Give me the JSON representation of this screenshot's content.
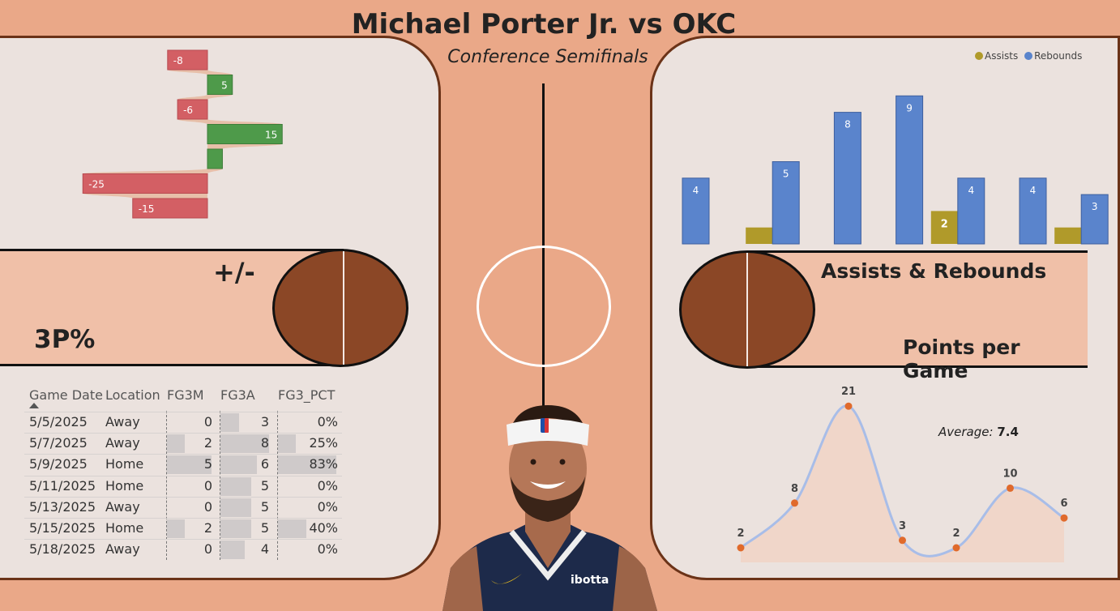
{
  "header": {
    "title": "Michael Porter Jr. vs OKC",
    "subtitle": "Conference Semifinals"
  },
  "labels": {
    "plus_minus": "+/-",
    "three_pct": "3P%",
    "assists_rebounds": "Assists & Rebounds",
    "points_per_game": "Points per Game"
  },
  "colors": {
    "background": "#eaa888",
    "court": "#ebe2de",
    "ball": "#8b4726",
    "positive": "#4e9a4a",
    "negative": "#d35f64",
    "assists": "#b09a2a",
    "rebounds": "#5a84cc",
    "points_line": "#a8bde8",
    "points_dot": "#e06a2c"
  },
  "chart_data": [
    {
      "type": "bar",
      "orientation": "horizontal",
      "name_label": "+/-",
      "values": [
        -8,
        5,
        -6,
        15,
        3,
        -25,
        -15
      ],
      "data_labels": [
        "-8",
        "5",
        "-6",
        "15",
        "",
        "-25",
        "-15"
      ]
    },
    {
      "type": "bar",
      "legend": {
        "position": "top-right",
        "entries": [
          "Assists",
          "Rebounds"
        ]
      },
      "series": [
        {
          "name": "Assists",
          "values": [
            0,
            1,
            0,
            0,
            2,
            0,
            1
          ],
          "labels": [
            "",
            "",
            "",
            "",
            "2",
            "",
            ""
          ]
        },
        {
          "name": "Rebounds",
          "values": [
            4,
            5,
            8,
            9,
            4,
            4,
            3
          ],
          "labels": [
            "4",
            "5",
            "8",
            "9",
            "4",
            "4",
            "3"
          ]
        }
      ],
      "ylim": [
        0,
        10
      ]
    },
    {
      "type": "area",
      "values": [
        2,
        8,
        21,
        3,
        2,
        10,
        6
      ],
      "labels": [
        "2",
        "8",
        "21",
        "3",
        "2",
        "10",
        "6"
      ],
      "annotation": {
        "label": "Average:",
        "value": "7.4"
      },
      "ylim": [
        0,
        23
      ]
    },
    {
      "type": "table",
      "columns": [
        "Game Date",
        "Location",
        "FG3M",
        "FG3A",
        "FG3_PCT"
      ],
      "rows": [
        [
          "5/5/2025",
          "Away",
          "0",
          "3",
          "0%"
        ],
        [
          "5/7/2025",
          "Away",
          "2",
          "8",
          "25%"
        ],
        [
          "5/9/2025",
          "Home",
          "5",
          "6",
          "83%"
        ],
        [
          "5/11/2025",
          "Home",
          "0",
          "5",
          "0%"
        ],
        [
          "5/13/2025",
          "Away",
          "0",
          "5",
          "0%"
        ],
        [
          "5/15/2025",
          "Home",
          "2",
          "5",
          "40%"
        ],
        [
          "5/18/2025",
          "Away",
          "0",
          "4",
          "0%"
        ]
      ],
      "fg3m": [
        0,
        2,
        5,
        0,
        0,
        2,
        0
      ],
      "fg3a": [
        3,
        8,
        6,
        5,
        5,
        5,
        4
      ],
      "fg3_pct": [
        0,
        25,
        83,
        0,
        0,
        40,
        0
      ]
    }
  ],
  "player": {
    "headband_logo": "nba-logo-icon",
    "jersey_sponsor": "ibotta",
    "swoosh": "nike-swoosh-icon"
  }
}
